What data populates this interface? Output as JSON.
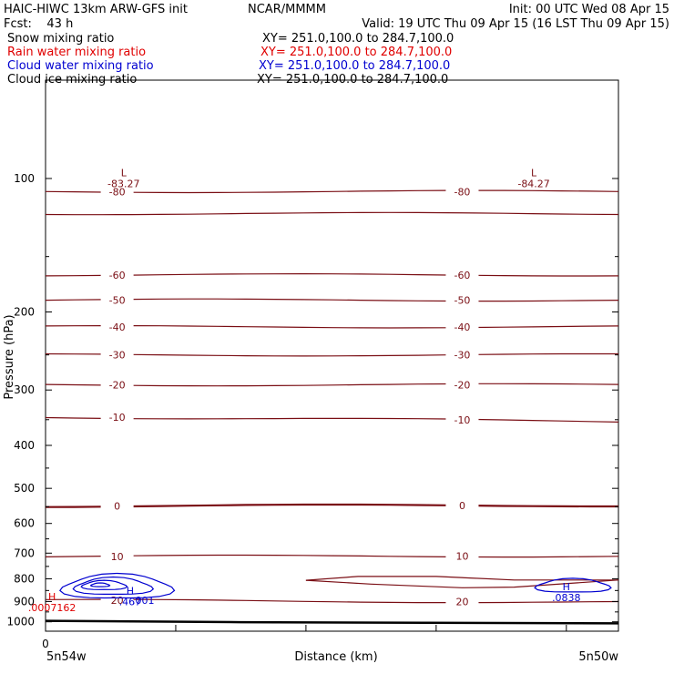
{
  "header": {
    "model": "HAIC-HIWC 13km ARW-GFS init",
    "org": "NCAR/MMMM",
    "init": "Init: 00 UTC Wed 08 Apr 15",
    "fcst": "Fcst:    43 h",
    "valid": "Valid: 19 UTC Thu 09 Apr 15 (16 LST Thu 09 Apr 15)"
  },
  "fields": [
    {
      "name": "Snow mixing ratio",
      "xy": "XY= 251.0,100.0 to 284.7,100.0",
      "color": "#000000"
    },
    {
      "name": "Rain water mixing ratio",
      "xy": "XY= 251.0,100.0 to 284.7,100.0",
      "color": "#e00000"
    },
    {
      "name": "Cloud water mixing ratio",
      "xy": "XY= 251.0,100.0 to 284.7,100.0",
      "color": "#0000d0"
    },
    {
      "name": "Cloud ice mixing ratio",
      "xy": "XY= 251.0,100.0 to 284.7,100.0",
      "color": "#000000"
    }
  ],
  "colors": {
    "temperature": "#7a0e14",
    "cloud_water": "#0000d0",
    "rain": "#e00000",
    "terrain": "#000000"
  },
  "chart_data": {
    "type": "cross-section",
    "ylabel": "Pressure (hPa)",
    "xlabel": "Distance (km)",
    "y_scale": "log",
    "ylim": [
      1050,
      60
    ],
    "yticks": [
      100,
      200,
      300,
      400,
      500,
      600,
      700,
      800,
      900,
      1000
    ],
    "xlim": [
      0,
      4.4
    ],
    "xticks": [
      0,
      1,
      2,
      3,
      4
    ],
    "x_start_label": "0",
    "left_label": "5n54w",
    "right_label": "5n50w",
    "temperature_isotherms": [
      {
        "value": -80,
        "label": "-80",
        "p_left": 107,
        "p_right": 107
      },
      {
        "value": -70,
        "label": "",
        "p_left": 120,
        "p_right": 120
      },
      {
        "value": -60,
        "label": "-60",
        "p_left": 165,
        "p_right": 165
      },
      {
        "value": -50,
        "label": "-50",
        "p_left": 188,
        "p_right": 188
      },
      {
        "value": -40,
        "label": "-40",
        "p_left": 216,
        "p_right": 216
      },
      {
        "value": -30,
        "label": "-30",
        "p_left": 250,
        "p_right": 250
      },
      {
        "value": -20,
        "label": "-20",
        "p_left": 292,
        "p_right": 292
      },
      {
        "value": -10,
        "label": "-10",
        "p_left": 345,
        "p_right": 353
      },
      {
        "value": 0,
        "label": "0",
        "p_left": 548,
        "p_right": 546
      },
      {
        "value": 10,
        "label": "10",
        "p_left": 712,
        "p_right": 710
      },
      {
        "value": 20,
        "label": "20",
        "p_left": 894,
        "p_right": 903
      }
    ],
    "extrema": [
      {
        "type": "L",
        "value": "-83.27",
        "x": 0.6,
        "p": 97,
        "field": "temperature"
      },
      {
        "type": "L",
        "value": "-84.27",
        "x": 3.75,
        "p": 97,
        "field": "temperature"
      },
      {
        "type": "H",
        "value": ".467",
        "x": 0.65,
        "p": 850,
        "field": "cloud_water"
      },
      {
        "type": "H",
        "value": ".0838",
        "x": 4.0,
        "p": 832,
        "field": "cloud_water"
      },
      {
        "type": "H",
        "value": ".0007162",
        "x": 0.05,
        "p": 878,
        "field": "rain"
      }
    ],
    "contour_labels": [
      {
        "value": ".001",
        "x": 0.75,
        "p": 893,
        "field": "cloud_water"
      }
    ],
    "surface_pressure": [
      [
        0,
        995
      ],
      [
        1.5,
        1002
      ],
      [
        4.4,
        1008
      ]
    ]
  }
}
